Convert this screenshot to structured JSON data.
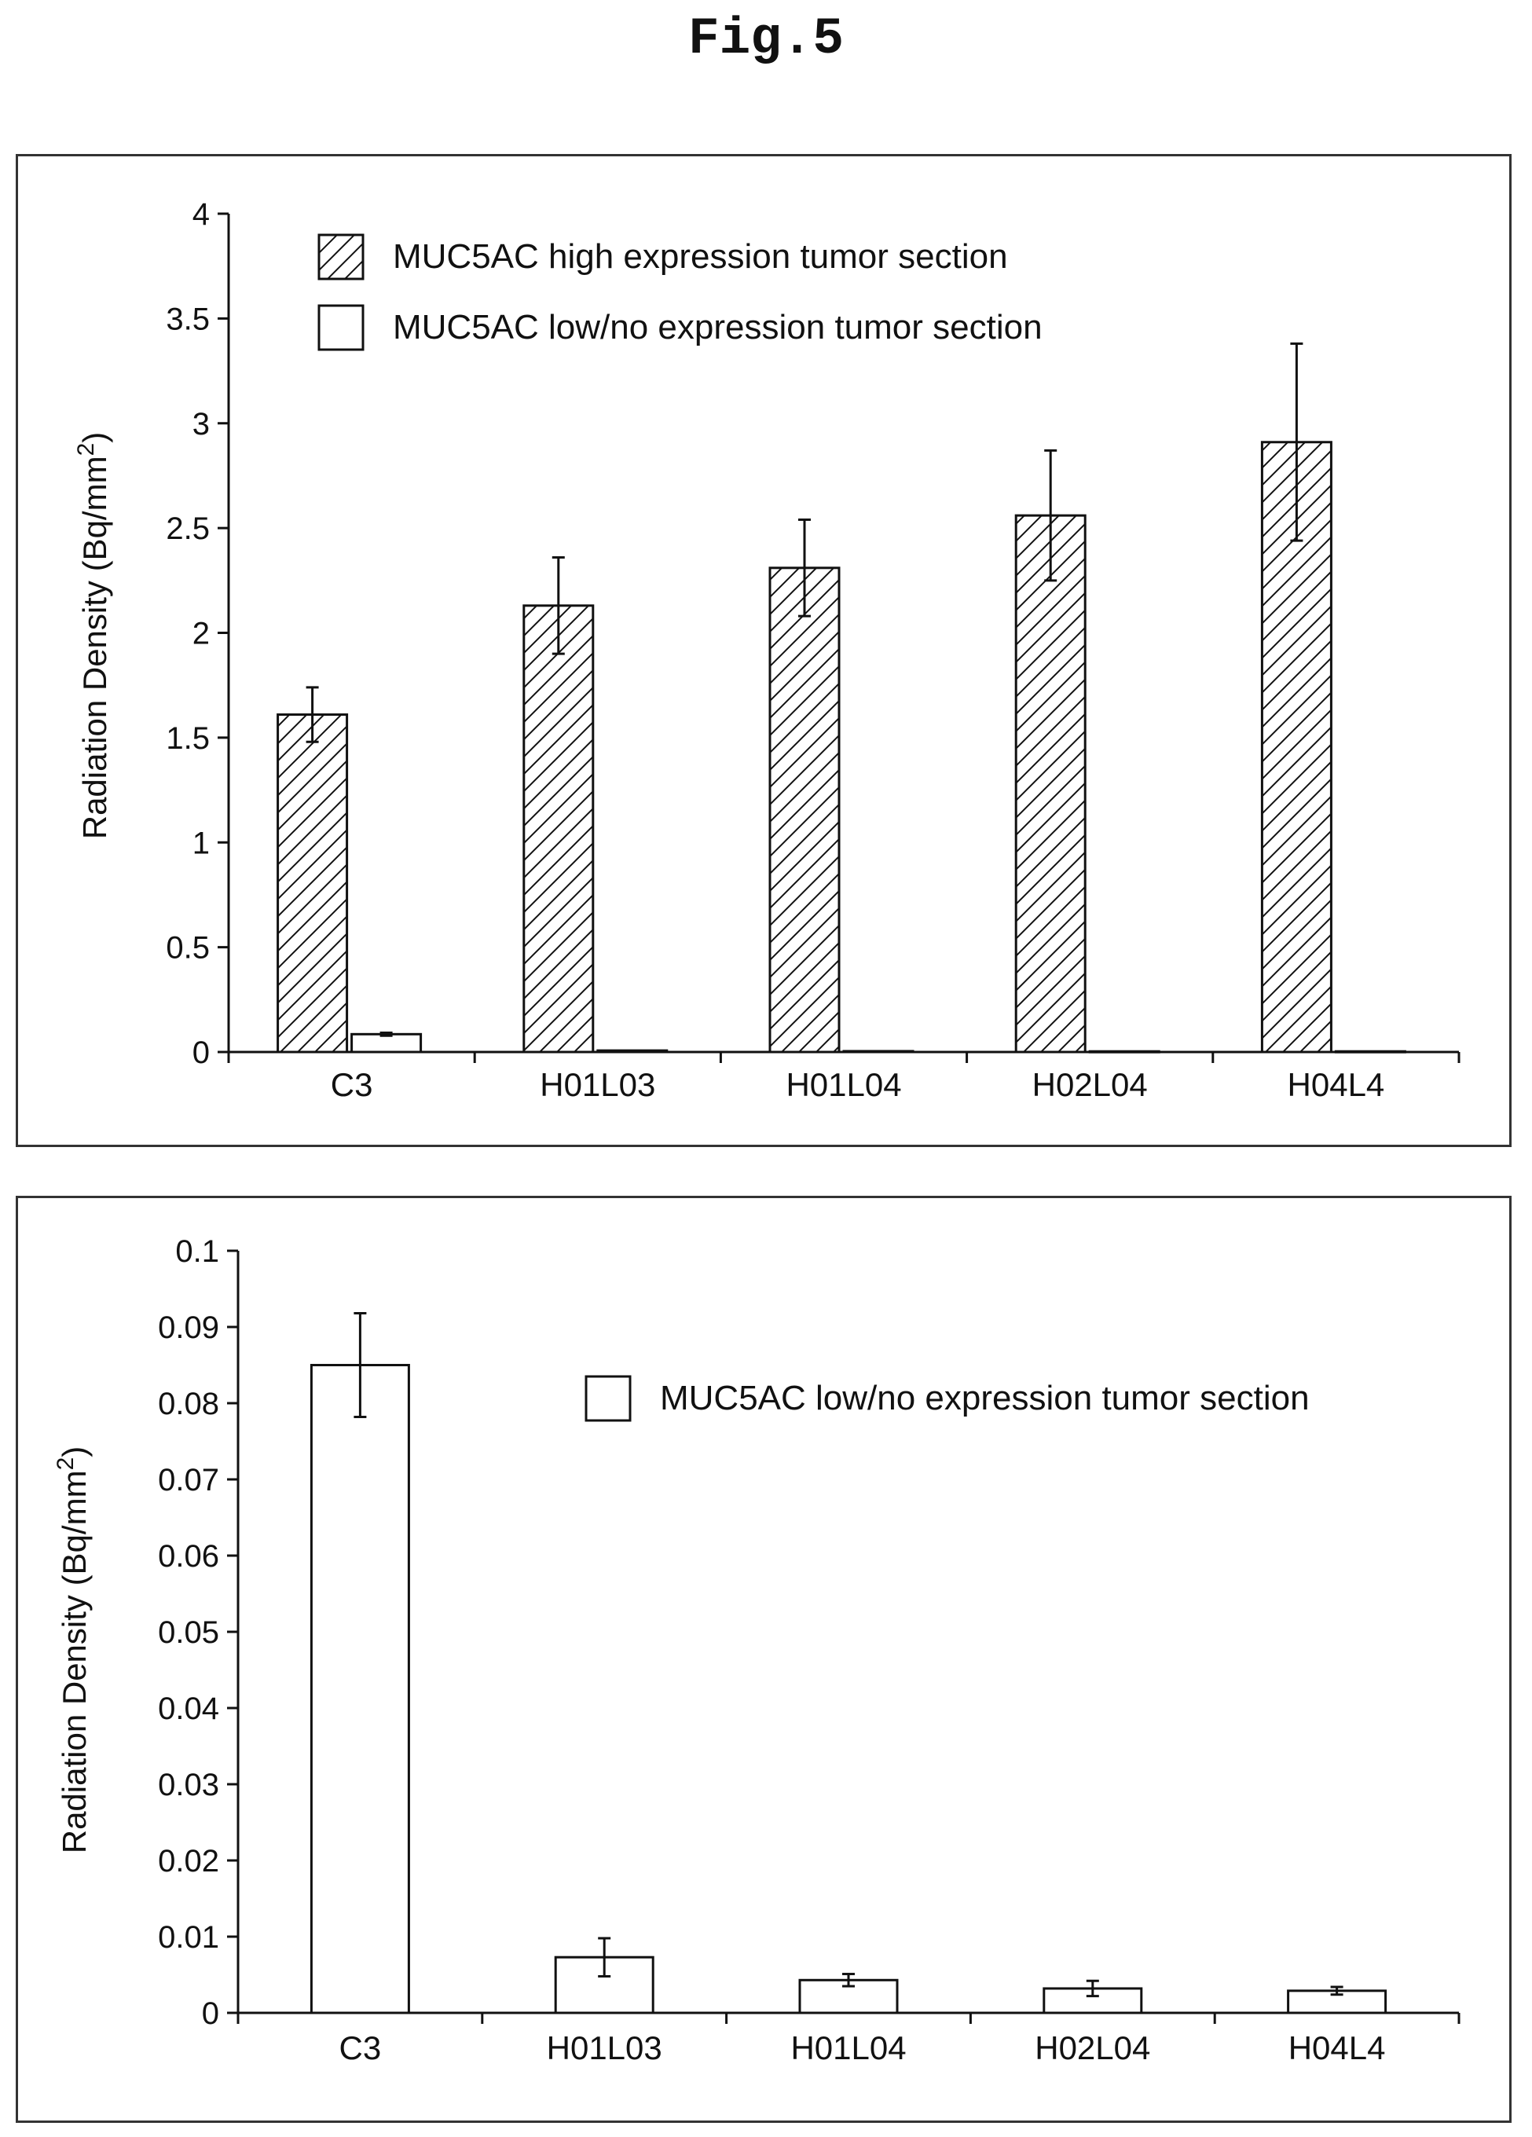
{
  "figure_title": "Fig.5",
  "colors": {
    "axis": "#111111",
    "bar_stroke": "#111111",
    "hatch": "#111111",
    "background": "#ffffff"
  },
  "chart_data": [
    {
      "type": "bar",
      "categories": [
        "C3",
        "H01L03",
        "H01L04",
        "H02L04",
        "H04L4"
      ],
      "ylabel": "Radiation Density (Bq/mm",
      "ylabel_sup": "2",
      "ylabel_close": ")",
      "ylim": [
        0,
        4
      ],
      "yticks": [
        "0",
        "0.5",
        "1",
        "1.5",
        "2",
        "2.5",
        "3",
        "3.5",
        "4"
      ],
      "tick_step": 0.5,
      "grid": false,
      "legend_position": "top-left",
      "series": [
        {
          "name": "MUC5AC high expression tumor section",
          "pattern": "hatched",
          "values": [
            1.61,
            2.13,
            2.31,
            2.56,
            2.91
          ],
          "errors": [
            0.13,
            0.23,
            0.23,
            0.31,
            0.47
          ]
        },
        {
          "name": "MUC5AC low/no expression tumor section",
          "pattern": "open",
          "values": [
            0.085,
            0.007,
            0.004,
            0.003,
            0.003
          ],
          "errors": [
            0.007,
            0,
            0,
            0,
            0
          ]
        }
      ]
    },
    {
      "type": "bar",
      "categories": [
        "C3",
        "H01L03",
        "H01L04",
        "H02L04",
        "H04L4"
      ],
      "ylabel": "Radiation Density (Bq/mm",
      "ylabel_sup": "2",
      "ylabel_close": ")",
      "ylim": [
        0,
        0.1
      ],
      "yticks": [
        "0",
        "0.01",
        "0.02",
        "0.03",
        "0.04",
        "0.05",
        "0.06",
        "0.07",
        "0.08",
        "0.09",
        "0.1"
      ],
      "tick_step": 0.01,
      "grid": false,
      "legend_position": "top-right",
      "series": [
        {
          "name": "MUC5AC low/no expression tumor section",
          "pattern": "open",
          "values": [
            0.085,
            0.0073,
            0.0043,
            0.0032,
            0.0029
          ],
          "errors": [
            0.0068,
            0.0025,
            0.0008,
            0.001,
            0.0005
          ]
        }
      ]
    }
  ]
}
